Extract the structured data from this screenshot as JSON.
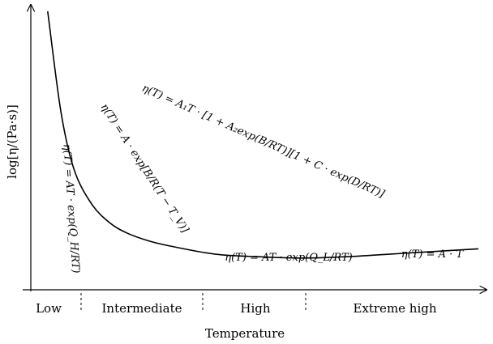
{
  "chart_data": {
    "type": "line",
    "title": "",
    "xlabel": "Temperature",
    "ylabel": "log[η/(Pa·s)]",
    "grid": false,
    "legend": "none",
    "series": [
      {
        "x": [
          0.02,
          0.05,
          0.08,
          0.12,
          0.16,
          0.2,
          0.25,
          0.3,
          0.4,
          0.5,
          0.6,
          0.7,
          0.8,
          0.9,
          1.0
        ],
        "y": [
          1.0,
          0.62,
          0.4,
          0.27,
          0.2,
          0.16,
          0.13,
          0.11,
          0.08,
          0.07,
          0.065,
          0.07,
          0.08,
          0.09,
          0.1
        ]
      }
    ],
    "regions": [
      "Low",
      "Intermediate",
      "High",
      "Extreme high"
    ],
    "region_boundaries": [
      0.13,
      0.4,
      0.62
    ],
    "annotations": [
      {
        "id": "low",
        "text": "η(T) = AT · exp(Q_H/RT)"
      },
      {
        "id": "intermediate",
        "text": "η(T) = A · exp[B/R(T − T_V)]"
      },
      {
        "id": "general",
        "text": "η(T) = A₁T · [1 + A₂exp(B/RT)][1 + C · exp(D/RT)]"
      },
      {
        "id": "high",
        "text": "η(T) = AT · exp(Q_L/RT)"
      },
      {
        "id": "extreme",
        "text": "η(T) = A · T"
      }
    ]
  }
}
